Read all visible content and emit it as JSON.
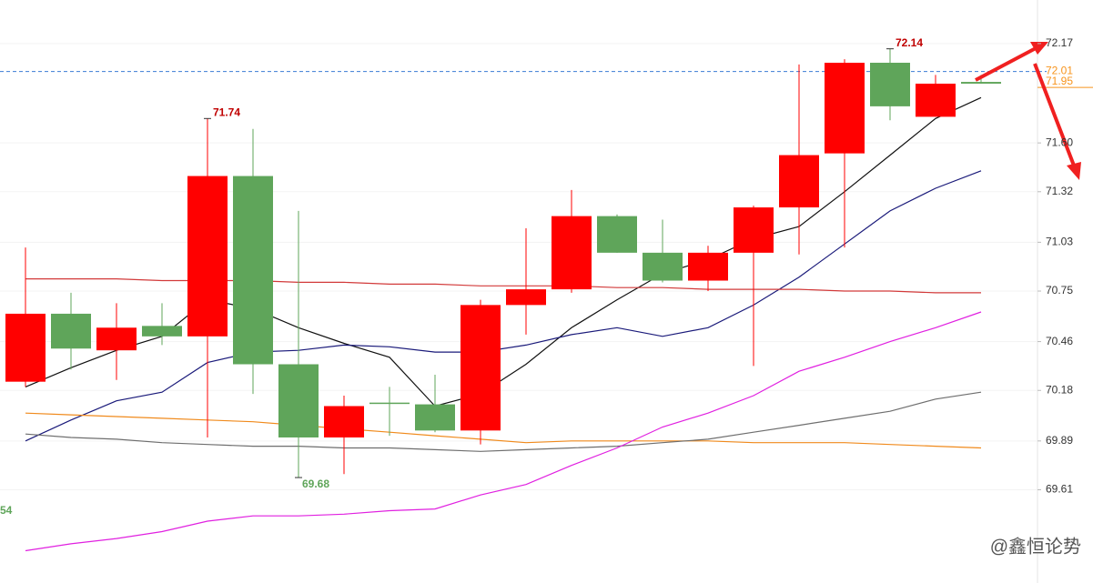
{
  "chart_data": {
    "type": "candlestick",
    "up_color": "#ff0000",
    "down_color": "#5fa55a",
    "open": [
      70.23,
      70.62,
      70.41,
      70.55,
      70.49,
      71.41,
      70.33,
      69.91,
      70.11,
      70.1,
      69.95,
      70.67,
      70.76,
      71.18,
      70.97,
      70.81,
      70.97,
      71.23,
      71.54,
      72.06,
      71.75,
      71.95
    ],
    "high": [
      71.0,
      70.74,
      70.68,
      70.68,
      71.74,
      71.68,
      71.21,
      70.15,
      70.2,
      70.27,
      70.7,
      71.11,
      71.33,
      71.19,
      71.16,
      71.01,
      71.24,
      72.05,
      72.08,
      72.14,
      71.99,
      71.99
    ],
    "low": [
      70.2,
      70.3,
      70.24,
      70.44,
      69.91,
      70.16,
      69.68,
      69.7,
      69.92,
      69.94,
      69.87,
      70.5,
      70.74,
      70.97,
      70.8,
      70.75,
      70.32,
      70.96,
      71.0,
      71.73,
      71.75,
      71.94
    ],
    "close": [
      70.62,
      70.42,
      70.54,
      70.49,
      71.41,
      70.33,
      69.91,
      70.09,
      70.11,
      69.95,
      70.67,
      70.76,
      71.18,
      70.97,
      70.81,
      70.97,
      71.23,
      71.53,
      72.06,
      71.81,
      71.94,
      71.94
    ],
    "high_labels": [
      null,
      null,
      null,
      null,
      "71.74",
      null,
      null,
      null,
      null,
      null,
      null,
      null,
      null,
      null,
      null,
      null,
      null,
      null,
      null,
      "72.14",
      null,
      null
    ],
    "low_labels": [
      null,
      null,
      null,
      null,
      null,
      null,
      "69.68",
      null,
      null,
      null,
      null,
      null,
      null,
      null,
      null,
      null,
      null,
      null,
      null,
      null,
      null,
      null
    ],
    "lines": [
      {
        "color": "#111111",
        "values": [
          70.2,
          70.31,
          70.41,
          70.49,
          70.7,
          70.65,
          70.54,
          70.45,
          70.37,
          70.09,
          70.16,
          70.33,
          70.54,
          70.7,
          70.85,
          70.93,
          71.05,
          71.12,
          71.32,
          71.53,
          71.74,
          71.86
        ]
      },
      {
        "color": "#1a1a7a",
        "values": [
          69.89,
          70.01,
          70.12,
          70.17,
          70.34,
          70.4,
          70.41,
          70.44,
          70.43,
          70.4,
          70.4,
          70.44,
          70.5,
          70.54,
          70.49,
          70.54,
          70.67,
          70.83,
          71.02,
          71.21,
          71.34,
          71.44
        ]
      },
      {
        "color": "#d23a3a",
        "values": [
          70.82,
          70.82,
          70.82,
          70.81,
          70.81,
          70.81,
          70.8,
          70.8,
          70.79,
          70.79,
          70.78,
          70.78,
          70.78,
          70.77,
          70.77,
          70.76,
          70.76,
          70.76,
          70.75,
          70.75,
          70.74,
          70.74
        ]
      },
      {
        "color": "#f08a1c",
        "values": [
          70.05,
          70.04,
          70.03,
          70.02,
          70.01,
          70.0,
          69.98,
          69.96,
          69.94,
          69.92,
          69.9,
          69.88,
          69.89,
          69.89,
          69.89,
          69.89,
          69.88,
          69.88,
          69.88,
          69.87,
          69.86,
          69.85
        ]
      },
      {
        "color": "#6e6e6e",
        "values": [
          69.93,
          69.91,
          69.9,
          69.88,
          69.87,
          69.86,
          69.86,
          69.85,
          69.85,
          69.84,
          69.83,
          69.84,
          69.85,
          69.86,
          69.88,
          69.9,
          69.94,
          69.98,
          70.02,
          70.06,
          70.13,
          70.17
        ]
      },
      {
        "color": "#e020e0",
        "values": [
          69.26,
          69.3,
          69.33,
          69.37,
          69.43,
          69.46,
          69.46,
          69.47,
          69.49,
          69.5,
          69.58,
          69.64,
          69.75,
          69.85,
          69.97,
          70.05,
          70.15,
          70.29,
          70.37,
          70.46,
          70.54,
          70.63
        ]
      }
    ],
    "price_lines": [
      {
        "value": 72.01,
        "label": "72.01",
        "color": "#f7941d",
        "line_color": "#3a7bd5"
      },
      {
        "value": 71.95,
        "label": "71.95",
        "color": "#f7941d",
        "line_color": "#f7941d"
      }
    ],
    "edge_label": "54",
    "watermark": "@鑫恒论势",
    "ylim": [
      69.075,
      72.42
    ],
    "yticks": [
      72.17,
      {
        "value": 71.6,
        "label": "71.60"
      },
      71.32,
      71.03,
      70.75,
      70.46,
      70.18,
      69.89,
      69.61
    ],
    "grid": true
  }
}
